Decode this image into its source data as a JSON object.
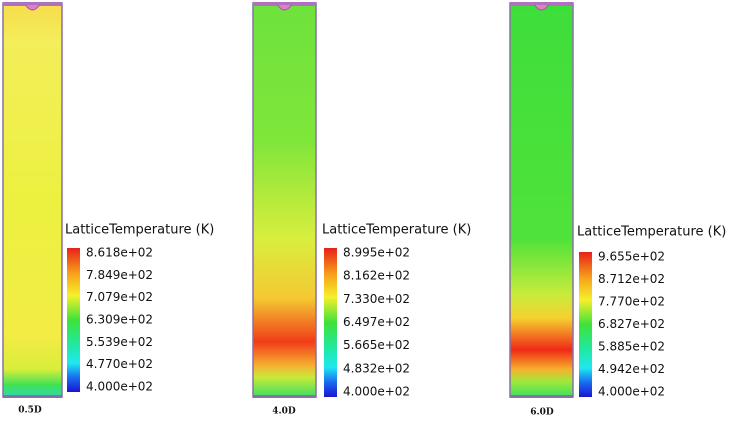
{
  "panels": [
    {
      "label": "0.5D",
      "legend_title": "LatticeTemperature (K)",
      "ticks": [
        "8.618e+02",
        "7.849e+02",
        "7.079e+02",
        "6.309e+02",
        "5.539e+02",
        "4.770e+02",
        "4.000e+02"
      ]
    },
    {
      "label": "4.0D",
      "legend_title": "LatticeTemperature (K)",
      "ticks": [
        "8.995e+02",
        "8.162e+02",
        "7.330e+02",
        "6.497e+02",
        "5.665e+02",
        "4.832e+02",
        "4.000e+02"
      ]
    },
    {
      "label": "6.0D",
      "legend_title": "LatticeTemperature (K)",
      "ticks": [
        "9.655e+02",
        "8.712e+02",
        "7.770e+02",
        "6.827e+02",
        "5.885e+02",
        "4.942e+02",
        "4.000e+02"
      ]
    }
  ]
}
